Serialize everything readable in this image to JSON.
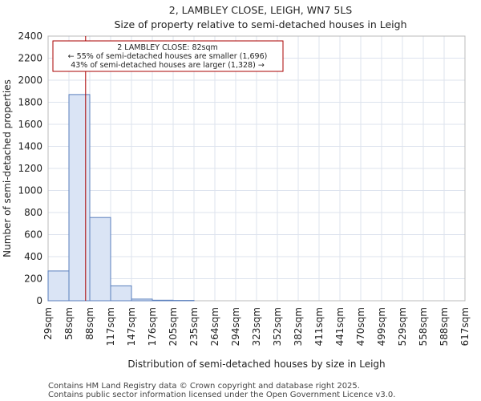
{
  "chart_data": {
    "type": "bar",
    "title": "2, LAMBLEY CLOSE, LEIGH, WN7 5LS",
    "subtitle": "Size of property relative to semi-detached houses in Leigh",
    "xlabel": "Distribution of semi-detached houses by size in Leigh",
    "ylabel": "Number of semi-detached properties",
    "ylim": [
      0,
      2400
    ],
    "yticks": [
      0,
      200,
      400,
      600,
      800,
      1000,
      1200,
      1400,
      1600,
      1800,
      2000,
      2200,
      2400
    ],
    "bin_edges": [
      29,
      58,
      88,
      117,
      147,
      176,
      205,
      235,
      264,
      294,
      323,
      352,
      382,
      411,
      441,
      470,
      499,
      529,
      558,
      588,
      617
    ],
    "xtick_labels": [
      "29sqm",
      "58sqm",
      "88sqm",
      "117sqm",
      "147sqm",
      "176sqm",
      "205sqm",
      "235sqm",
      "264sqm",
      "294sqm",
      "323sqm",
      "352sqm",
      "382sqm",
      "411sqm",
      "441sqm",
      "470sqm",
      "499sqm",
      "529sqm",
      "558sqm",
      "588sqm",
      "617sqm"
    ],
    "values": [
      270,
      1870,
      755,
      135,
      15,
      5,
      3,
      0,
      0,
      0,
      0,
      0,
      0,
      0,
      0,
      0,
      0,
      0,
      0,
      0
    ],
    "grid": true,
    "marker": {
      "value": 82,
      "color": "#aa0000"
    },
    "annotation": {
      "lines": [
        "2 LAMBLEY CLOSE: 82sqm",
        "← 55% of semi-detached houses are smaller (1,696)",
        "43% of semi-detached houses are larger (1,328) →"
      ],
      "border_color": "#aa0000"
    },
    "bar_fill": "#dae4f5",
    "bar_stroke": "#5b7fbd"
  },
  "footer": {
    "line1": "Contains HM Land Registry data © Crown copyright and database right 2025.",
    "line2": "Contains public sector information licensed under the Open Government Licence v3.0."
  }
}
